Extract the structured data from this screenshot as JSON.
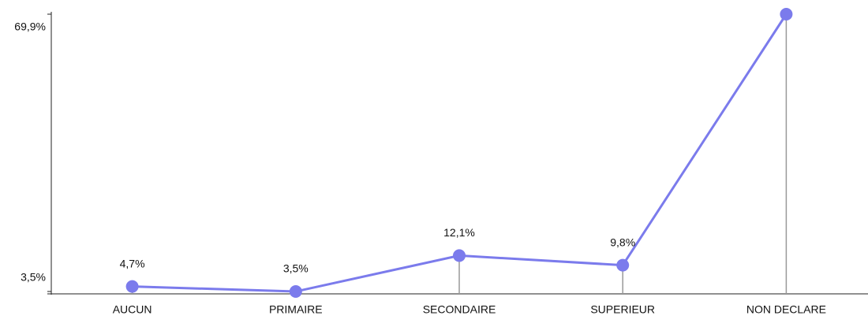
{
  "chart_data": {
    "type": "line",
    "categories": [
      "AUCUN",
      "PRIMAIRE",
      "SECONDAIRE",
      "SUPERIEUR",
      "NON DECLARE"
    ],
    "values": [
      4.7,
      3.5,
      12.1,
      9.8,
      69.9
    ],
    "value_labels": [
      "4,7%",
      "3,5%",
      "12,1%",
      "9,8%",
      null
    ],
    "color": "#7b7bec",
    "ylim": [
      3.5,
      69.9
    ],
    "yticks": [
      {
        "value": 3.5,
        "label": "3,5%"
      },
      {
        "value": 69.9,
        "label": "69,9%"
      }
    ],
    "drop_lines": true
  }
}
